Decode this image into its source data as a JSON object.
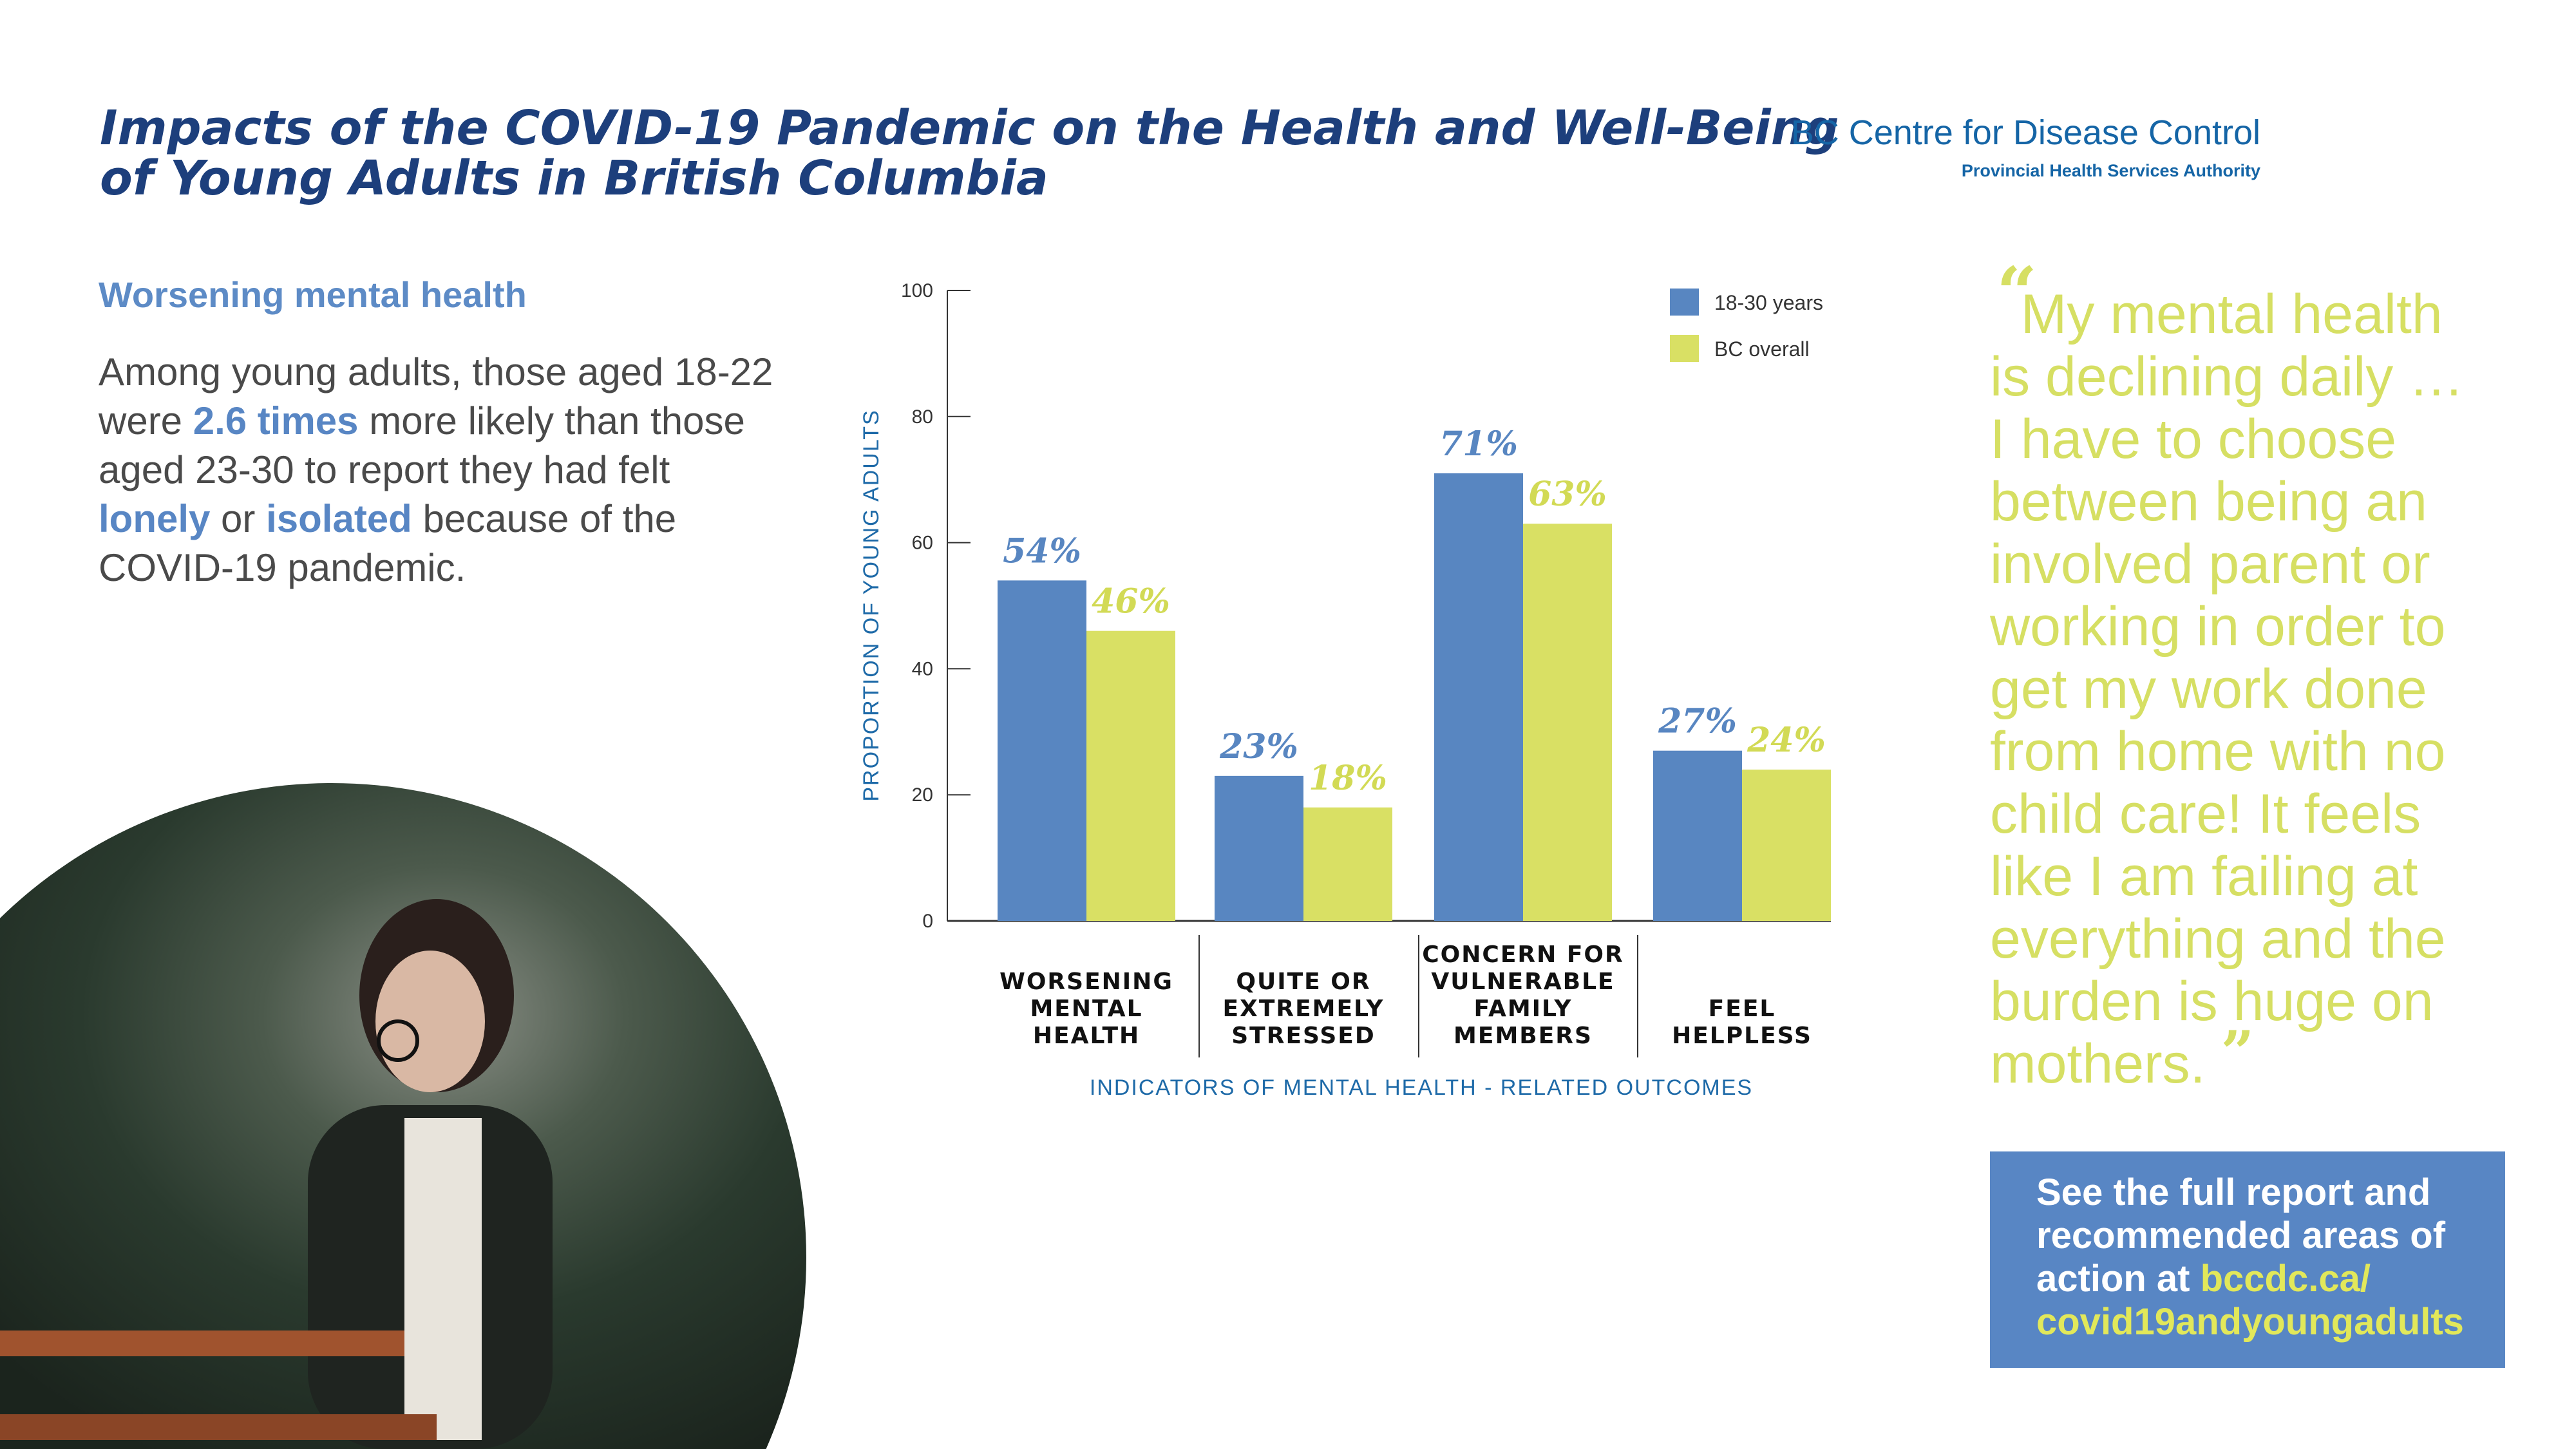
{
  "title": "Impacts of the COVID-19 Pandemic on the Health and Well-Being of Young Adults in British Columbia",
  "logo": {
    "name": "BC Centre for Disease Control",
    "sub": "Provincial Health Services Authority"
  },
  "left": {
    "heading": "Worsening mental health",
    "p1": "Among young adults, those aged 18-22 were ",
    "h1": "2.6 times",
    "p2": " more likely than those aged 23-30 to report they had felt ",
    "h2": "lonely",
    "p3": " or ",
    "h3": "isolated",
    "p4": " because of the COVID-19 pandemic."
  },
  "quote": {
    "open": "“",
    "text": "My mental health is declining daily … I have to choose between being an involved parent or working in order to get my work done from home with no child care! It feels like I am failing at everything and the burden is huge on mothers.",
    "close": "”"
  },
  "cta": {
    "text": "See the full report and recommended areas of action at ",
    "link": "bccdc.ca/ covid19andyoungadults"
  },
  "chart_data": {
    "type": "bar",
    "categories": [
      [
        "WORSENING",
        "MENTAL",
        "HEALTH"
      ],
      [
        "QUITE OR",
        "EXTREMELY",
        "STRESSED"
      ],
      [
        "CONCERN FOR",
        "VULNERABLE",
        "FAMILY",
        "MEMBERS"
      ],
      [
        "FEEL",
        "HELPLESS"
      ]
    ],
    "series": [
      {
        "name": "18-30 years",
        "values": [
          54,
          23,
          71,
          27
        ],
        "labels": [
          "54%",
          "23%",
          "71%",
          "27%"
        ],
        "color": "#5886c1"
      },
      {
        "name": "BC overall",
        "values": [
          46,
          18,
          63,
          24
        ],
        "labels": [
          "46%",
          "18%",
          "63%",
          "24%"
        ],
        "color": "#d9e064"
      }
    ],
    "xlabel": "INDICATORS OF MENTAL HEALTH - RELATED OUTCOMES",
    "ylabel": "PROPORTION OF YOUNG ADULTS",
    "ylim": [
      0,
      100
    ],
    "yticks": [
      "0",
      "20",
      "40",
      "60",
      "80",
      "100"
    ],
    "grid": false,
    "legend": "top-right"
  }
}
